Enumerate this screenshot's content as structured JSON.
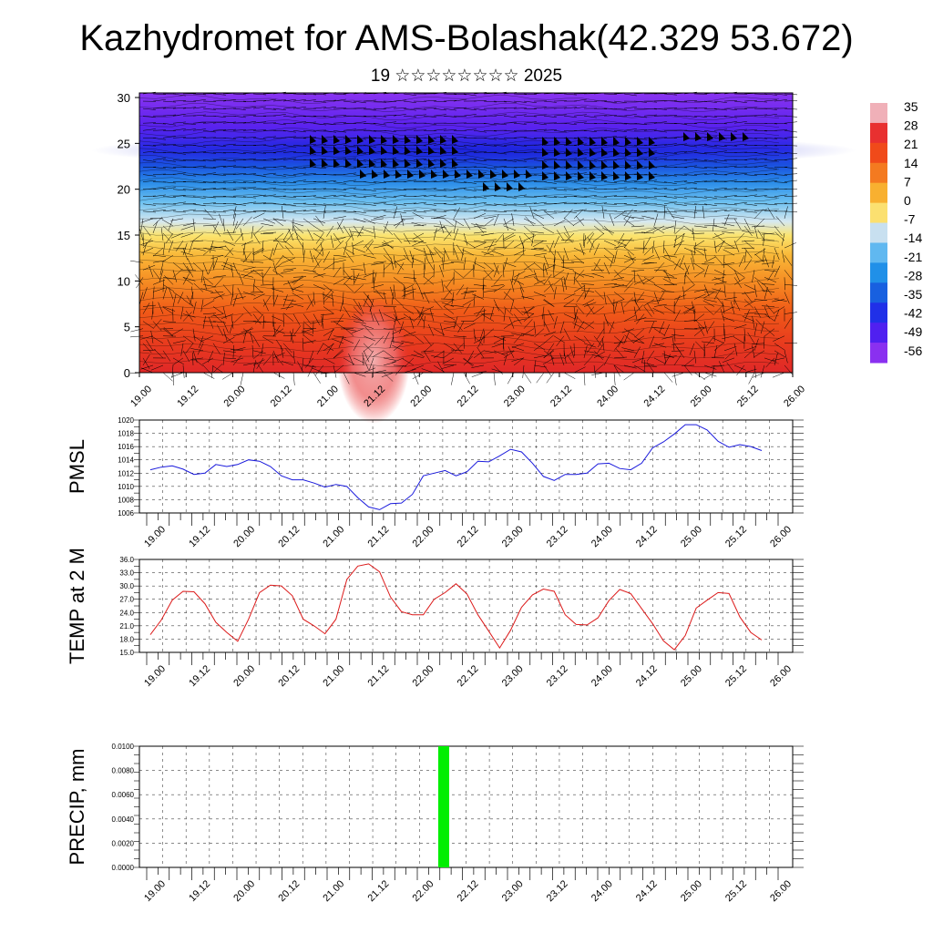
{
  "title": "Kazhydromet for AMS-Bolashak(42.329 53.672)",
  "subtitle": "19 ☆☆☆☆☆☆☆☆ 2025",
  "chart_data": [
    {
      "type": "heatmap",
      "title": "",
      "xlabel": "",
      "ylabel": "",
      "x_ticks": [
        "19.00",
        "19.12",
        "20.00",
        "20.12",
        "21.00",
        "21.12",
        "22.00",
        "22.12",
        "23.00",
        "23.12",
        "24.00",
        "24.12",
        "25.00",
        "25.12",
        "26.00"
      ],
      "y_ticks": [
        "0",
        "5",
        "10",
        "15",
        "20",
        "25",
        "30"
      ],
      "ylim": [
        0,
        30.5
      ],
      "colorbar_labels": [
        "35",
        "28",
        "21",
        "14",
        "7",
        "0",
        "-7",
        "-14",
        "-21",
        "-28",
        "-35",
        "-42",
        "-49",
        "-56"
      ],
      "colorbar_colors": [
        "#f0b0b8",
        "#e83030",
        "#f04a1a",
        "#f47a20",
        "#f8b030",
        "#fbe070",
        "#c8e0f0",
        "#60b8f0",
        "#2090e8",
        "#1860e0",
        "#2030e8",
        "#5020f0",
        "#8a30f0"
      ],
      "wind_barbs": "dense field"
    },
    {
      "type": "line",
      "ylabel": "PMSL",
      "ylim": [
        1006,
        1020
      ],
      "y_ticks": [
        "1020",
        "1018",
        "1016",
        "1014",
        "1012",
        "1010",
        "1008",
        "1006"
      ],
      "x_ticks": [
        "19.00",
        "19.12",
        "20.00",
        "20.12",
        "21.00",
        "21.12",
        "22.00",
        "22.12",
        "23.00",
        "23.12",
        "24.00",
        "24.12",
        "25.00",
        "25.12",
        "26.00"
      ],
      "color": "#1a1adc",
      "values": [
        1012.5,
        1012.9,
        1013.1,
        1012.6,
        1011.8,
        1012.0,
        1013.3,
        1013.0,
        1013.3,
        1014.0,
        1013.8,
        1013.0,
        1011.6,
        1011.0,
        1011.0,
        1010.5,
        1009.9,
        1010.3,
        1010.0,
        1008.3,
        1006.9,
        1006.5,
        1007.4,
        1007.5,
        1008.8,
        1011.6,
        1012.0,
        1012.4,
        1011.6,
        1012.2,
        1013.8,
        1013.7,
        1014.6,
        1015.6,
        1015.2,
        1013.5,
        1011.5,
        1010.9,
        1011.8,
        1011.8,
        1012.0,
        1013.4,
        1013.5,
        1012.7,
        1012.5,
        1013.5,
        1015.8,
        1016.7,
        1017.9,
        1019.3,
        1019.3,
        1018.5,
        1016.8,
        1015.9,
        1016.3,
        1016.0,
        1015.4
      ]
    },
    {
      "type": "line",
      "ylabel": "TEMP at 2 M",
      "ylim": [
        15,
        36
      ],
      "y_ticks": [
        "36.0",
        "33.0",
        "30.0",
        "27.0",
        "24.0",
        "21.0",
        "18.0",
        "15.0"
      ],
      "x_ticks": [
        "19.00",
        "19.12",
        "20.00",
        "20.12",
        "21.00",
        "21.12",
        "22.00",
        "22.12",
        "23.00",
        "23.12",
        "24.00",
        "24.12",
        "25.00",
        "25.12",
        "26.00"
      ],
      "color": "#dc1a1a",
      "values": [
        19.0,
        22.3,
        26.8,
        28.8,
        28.7,
        26.0,
        21.8,
        19.5,
        17.5,
        22.5,
        28.5,
        30.2,
        30.0,
        27.8,
        22.5,
        21.0,
        19.2,
        22.5,
        31.5,
        34.5,
        35.0,
        33.2,
        27.5,
        24.2,
        23.5,
        23.5,
        27.0,
        28.5,
        30.5,
        28.2,
        23.5,
        19.8,
        16.0,
        20.0,
        25.2,
        28.0,
        29.3,
        28.8,
        23.5,
        21.3,
        21.2,
        22.8,
        26.7,
        29.2,
        28.3,
        24.9,
        21.5,
        17.6,
        15.6,
        18.8,
        25.0,
        26.8,
        28.5,
        28.3,
        23.0,
        19.5,
        17.8
      ]
    },
    {
      "type": "bar",
      "ylabel": "PRECIP, mm",
      "ylim": [
        0,
        0.01
      ],
      "y_ticks": [
        "0.0100",
        "0.0080",
        "0.0060",
        "0.0040",
        "0.0020",
        "0.0000"
      ],
      "x_ticks": [
        "19.00",
        "19.12",
        "20.00",
        "20.12",
        "21.00",
        "21.12",
        "22.00",
        "22.12",
        "23.00",
        "23.12",
        "24.00",
        "24.12",
        "25.00",
        "25.12",
        "26.00"
      ],
      "color": "#00ee00",
      "bars": [
        {
          "x": 78.0,
          "value": 0.01
        }
      ]
    }
  ]
}
